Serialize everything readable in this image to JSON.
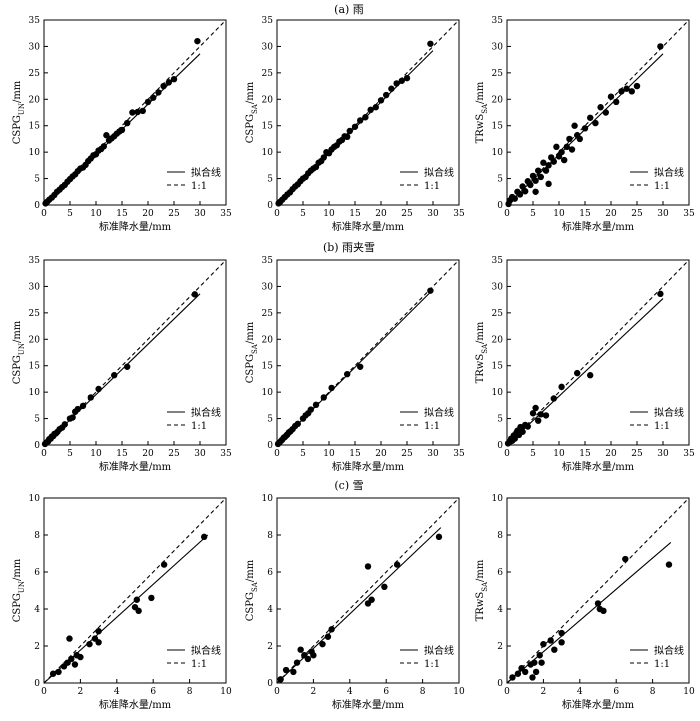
{
  "panel_titles": [
    "(a) 雨",
    "(b) 雨夹雪",
    "(c) 雪"
  ],
  "legend": {
    "fit_label": "拟合线",
    "one_to_one_label": "1:1"
  },
  "chart_data": [
    {
      "type": "scatter",
      "group": "(a) 雨",
      "xlabel": "标准降水量/mm",
      "ylabel": "CSPG_UN/mm",
      "xlim": [
        0,
        35
      ],
      "ylim": [
        0,
        35
      ],
      "ticks": [
        0,
        5,
        10,
        15,
        20,
        25,
        30,
        35
      ],
      "fit": {
        "x": [
          0,
          30
        ],
        "y": [
          0,
          28.6
        ]
      },
      "points": [
        [
          0.3,
          0.3
        ],
        [
          0.6,
          0.6
        ],
        [
          1,
          1
        ],
        [
          1.5,
          1.4
        ],
        [
          2,
          1.9
        ],
        [
          2.5,
          2.5
        ],
        [
          3,
          2.9
        ],
        [
          3.5,
          3.4
        ],
        [
          4,
          3.8
        ],
        [
          4.5,
          4.4
        ],
        [
          5,
          4.9
        ],
        [
          5.5,
          5.4
        ],
        [
          6,
          5.8
        ],
        [
          6.5,
          6.4
        ],
        [
          7,
          6.9
        ],
        [
          7.5,
          7.1
        ],
        [
          8,
          7.6
        ],
        [
          8.5,
          8.3
        ],
        [
          9,
          8.8
        ],
        [
          9.5,
          9.4
        ],
        [
          10,
          9.6
        ],
        [
          10.5,
          10.3
        ],
        [
          11,
          10.6
        ],
        [
          11.5,
          11.1
        ],
        [
          12,
          13.2
        ],
        [
          12.5,
          12.2
        ],
        [
          13,
          12.6
        ],
        [
          13.5,
          13
        ],
        [
          14,
          13.5
        ],
        [
          14.5,
          13.9
        ],
        [
          15,
          14.2
        ],
        [
          16,
          15.5
        ],
        [
          17,
          17.5
        ],
        [
          18,
          17.6
        ],
        [
          19,
          17.8
        ],
        [
          20,
          19.5
        ],
        [
          21,
          20.3
        ],
        [
          22,
          21.3
        ],
        [
          23,
          22.5
        ],
        [
          24,
          23.2
        ],
        [
          25,
          23.8
        ],
        [
          29.5,
          31
        ]
      ]
    },
    {
      "type": "scatter",
      "group": "(a) 雨",
      "xlabel": "标准降水量/mm",
      "ylabel": "CSPG_SA/mm",
      "xlim": [
        0,
        35
      ],
      "ylim": [
        0,
        35
      ],
      "ticks": [
        0,
        5,
        10,
        15,
        20,
        25,
        30,
        35
      ],
      "fit": {
        "x": [
          0,
          30
        ],
        "y": [
          0,
          29.2
        ]
      },
      "points": [
        [
          0.3,
          0.3
        ],
        [
          0.6,
          0.6
        ],
        [
          1,
          1
        ],
        [
          1.5,
          1.5
        ],
        [
          2,
          2
        ],
        [
          2.5,
          2.4
        ],
        [
          3,
          3
        ],
        [
          3.5,
          3.5
        ],
        [
          4,
          3.9
        ],
        [
          4.5,
          4.5
        ],
        [
          5,
          5
        ],
        [
          5.5,
          5.3
        ],
        [
          6,
          6
        ],
        [
          6.5,
          6.5
        ],
        [
          7,
          6.9
        ],
        [
          7.5,
          7.2
        ],
        [
          8,
          8
        ],
        [
          8.5,
          8.3
        ],
        [
          9,
          9
        ],
        [
          9.5,
          10
        ],
        [
          10,
          9.8
        ],
        [
          10.5,
          10.5
        ],
        [
          11,
          11
        ],
        [
          11.5,
          11.3
        ],
        [
          12,
          12
        ],
        [
          12.5,
          12.3
        ],
        [
          13,
          13
        ],
        [
          13.5,
          12.9
        ],
        [
          14,
          14
        ],
        [
          15,
          14.8
        ],
        [
          16,
          16
        ],
        [
          17,
          16.6
        ],
        [
          18,
          18
        ],
        [
          19,
          18.5
        ],
        [
          20,
          19.8
        ],
        [
          21,
          20.8
        ],
        [
          22,
          22
        ],
        [
          23,
          23
        ],
        [
          24,
          23.5
        ],
        [
          25,
          24
        ],
        [
          29.5,
          30.5
        ]
      ]
    },
    {
      "type": "scatter",
      "group": "(a) 雨",
      "xlabel": "标准降水量/mm",
      "ylabel": "TRwS_SA/mm",
      "xlim": [
        0,
        35
      ],
      "ylim": [
        0,
        35
      ],
      "ticks": [
        0,
        5,
        10,
        15,
        20,
        25,
        30,
        35
      ],
      "fit": {
        "x": [
          0,
          30
        ],
        "y": [
          0,
          28.6
        ]
      },
      "points": [
        [
          0.3,
          0.2
        ],
        [
          0.6,
          0.9
        ],
        [
          1,
          1.5
        ],
        [
          1.5,
          1.2
        ],
        [
          2,
          2.5
        ],
        [
          2.5,
          2
        ],
        [
          3,
          3.5
        ],
        [
          3.5,
          2.6
        ],
        [
          4,
          4.5
        ],
        [
          4.5,
          3.8
        ],
        [
          5,
          5.5
        ],
        [
          5.5,
          4.6
        ],
        [
          6,
          6.5
        ],
        [
          6.5,
          5.3
        ],
        [
          7,
          8
        ],
        [
          7.5,
          6.5
        ],
        [
          8,
          7.5
        ],
        [
          8.5,
          9
        ],
        [
          9,
          8.2
        ],
        [
          9.5,
          11
        ],
        [
          10,
          9.2
        ],
        [
          10.5,
          10
        ],
        [
          11,
          8.5
        ],
        [
          11.5,
          11
        ],
        [
          12,
          12.5
        ],
        [
          12.5,
          10.5
        ],
        [
          13,
          15
        ],
        [
          13.5,
          13.2
        ],
        [
          14,
          12.5
        ],
        [
          15,
          14.5
        ],
        [
          16,
          16.5
        ],
        [
          17,
          15.5
        ],
        [
          18,
          18.5
        ],
        [
          19,
          17.5
        ],
        [
          20,
          20.5
        ],
        [
          21,
          19.5
        ],
        [
          22,
          21.5
        ],
        [
          23,
          22
        ],
        [
          24,
          21.5
        ],
        [
          25,
          22.5
        ],
        [
          8,
          4
        ],
        [
          5.5,
          2.5
        ],
        [
          29.5,
          30
        ]
      ]
    },
    {
      "type": "scatter",
      "group": "(b) 雨夹雪",
      "xlabel": "标准降水量/mm",
      "ylabel": "CSPG_UN/mm",
      "xlim": [
        0,
        35
      ],
      "ylim": [
        0,
        35
      ],
      "ticks": [
        0,
        5,
        10,
        15,
        20,
        25,
        30,
        35
      ],
      "fit": {
        "x": [
          0,
          30
        ],
        "y": [
          0,
          28.6
        ]
      },
      "points": [
        [
          0.2,
          0.2
        ],
        [
          0.5,
          0.5
        ],
        [
          0.8,
          0.7
        ],
        [
          1,
          1.1
        ],
        [
          1.3,
          1.2
        ],
        [
          1.5,
          1.6
        ],
        [
          1.8,
          1.7
        ],
        [
          2,
          2.1
        ],
        [
          2.3,
          2.2
        ],
        [
          2.6,
          2.5
        ],
        [
          3,
          3
        ],
        [
          3.5,
          3.3
        ],
        [
          4,
          3.9
        ],
        [
          5,
          5
        ],
        [
          5.5,
          5.2
        ],
        [
          6,
          6.3
        ],
        [
          6.5,
          6.8
        ],
        [
          7.5,
          7.4
        ],
        [
          9,
          9
        ],
        [
          10.5,
          10.6
        ],
        [
          13.5,
          13.2
        ],
        [
          16,
          14.8
        ],
        [
          29,
          28.5
        ]
      ]
    },
    {
      "type": "scatter",
      "group": "(b) 雨夹雪",
      "xlabel": "标准降水量/mm",
      "ylabel": "CSPG_SA/mm",
      "xlim": [
        0,
        35
      ],
      "ylim": [
        0,
        35
      ],
      "ticks": [
        0,
        5,
        10,
        15,
        20,
        25,
        30,
        35
      ],
      "fit": {
        "x": [
          0,
          30
        ],
        "y": [
          0,
          29.4
        ]
      },
      "points": [
        [
          0.2,
          0.2
        ],
        [
          0.5,
          0.5
        ],
        [
          0.8,
          0.8
        ],
        [
          1,
          1
        ],
        [
          1.3,
          1.4
        ],
        [
          1.5,
          1.5
        ],
        [
          1.8,
          1.8
        ],
        [
          2,
          2
        ],
        [
          2.3,
          2.4
        ],
        [
          2.6,
          2.6
        ],
        [
          3,
          3
        ],
        [
          3.5,
          3.6
        ],
        [
          4,
          4
        ],
        [
          5,
          5
        ],
        [
          5.5,
          5.6
        ],
        [
          6,
          6
        ],
        [
          6.5,
          6.7
        ],
        [
          7.5,
          7.6
        ],
        [
          9,
          9
        ],
        [
          10.5,
          10.8
        ],
        [
          13.5,
          13.4
        ],
        [
          16,
          14.8
        ],
        [
          29.5,
          29.2
        ]
      ]
    },
    {
      "type": "scatter",
      "group": "(b) 雨夹雪",
      "xlabel": "标准降水量/mm",
      "ylabel": "TRwS_SA/mm",
      "xlim": [
        0,
        35
      ],
      "ylim": [
        0,
        35
      ],
      "ticks": [
        0,
        5,
        10,
        15,
        20,
        25,
        30,
        35
      ],
      "fit": {
        "x": [
          0,
          30
        ],
        "y": [
          0,
          27.7
        ]
      },
      "points": [
        [
          0.2,
          0.3
        ],
        [
          0.5,
          0.6
        ],
        [
          0.8,
          1.2
        ],
        [
          1,
          0.8
        ],
        [
          1.3,
          1.8
        ],
        [
          1.5,
          1.2
        ],
        [
          1.8,
          2.3
        ],
        [
          2,
          2.7
        ],
        [
          2.3,
          1.9
        ],
        [
          2.6,
          3.4
        ],
        [
          3,
          2.5
        ],
        [
          3.5,
          3.8
        ],
        [
          4,
          3.5
        ],
        [
          5,
          6
        ],
        [
          5.5,
          7
        ],
        [
          6,
          4.6
        ],
        [
          6.5,
          5.8
        ],
        [
          7.5,
          5.6
        ],
        [
          9,
          8.8
        ],
        [
          10.5,
          11
        ],
        [
          13.5,
          13.6
        ],
        [
          16,
          13.2
        ],
        [
          29.5,
          28.6
        ]
      ]
    },
    {
      "type": "scatter",
      "group": "(c) 雪",
      "xlabel": "标准降水量/mm",
      "ylabel": "CSPG_UN/mm",
      "xlim": [
        0,
        10
      ],
      "ylim": [
        0,
        10
      ],
      "ticks": [
        0,
        2,
        4,
        6,
        8,
        10
      ],
      "fit": {
        "x": [
          0,
          9
        ],
        "y": [
          0,
          8
        ]
      },
      "points": [
        [
          0.5,
          0.5
        ],
        [
          0.8,
          0.6
        ],
        [
          1.1,
          0.9
        ],
        [
          1.3,
          1.1
        ],
        [
          1.4,
          2.4
        ],
        [
          1.5,
          1.3
        ],
        [
          1.7,
          1
        ],
        [
          1.8,
          1.5
        ],
        [
          2,
          1.4
        ],
        [
          2.5,
          2.1
        ],
        [
          2.8,
          2.4
        ],
        [
          3,
          2.8
        ],
        [
          3,
          2.2
        ],
        [
          5,
          4.1
        ],
        [
          5.1,
          4.5
        ],
        [
          5.2,
          3.9
        ],
        [
          5.9,
          4.6
        ],
        [
          6.6,
          6.4
        ],
        [
          8.8,
          7.9
        ]
      ]
    },
    {
      "type": "scatter",
      "group": "(c) 雪",
      "xlabel": "标准降水量/mm",
      "ylabel": "CSPG_SA/mm",
      "xlim": [
        0,
        10
      ],
      "ylim": [
        0,
        10
      ],
      "ticks": [
        0,
        2,
        4,
        6,
        8,
        10
      ],
      "fit": {
        "x": [
          0,
          9
        ],
        "y": [
          0,
          8.4
        ]
      },
      "points": [
        [
          0.2,
          0.2
        ],
        [
          0.5,
          0.7
        ],
        [
          0.9,
          0.6
        ],
        [
          1.1,
          1.1
        ],
        [
          1.3,
          1.8
        ],
        [
          1.5,
          1.5
        ],
        [
          1.7,
          1.3
        ],
        [
          1.9,
          1.7
        ],
        [
          2,
          1.5
        ],
        [
          2.5,
          2.1
        ],
        [
          2.8,
          2.5
        ],
        [
          3,
          2.9
        ],
        [
          5,
          4.3
        ],
        [
          5,
          6.3
        ],
        [
          5.2,
          4.5
        ],
        [
          5.9,
          5.2
        ],
        [
          6.6,
          6.4
        ],
        [
          8.9,
          7.9
        ]
      ]
    },
    {
      "type": "scatter",
      "group": "(c) 雪",
      "xlabel": "标准降水量/mm",
      "ylabel": "TRwS_SA/mm",
      "xlim": [
        0,
        10
      ],
      "ylim": [
        0,
        10
      ],
      "ticks": [
        0,
        2,
        4,
        6,
        8,
        10
      ],
      "fit": {
        "x": [
          0,
          9
        ],
        "y": [
          0,
          7.6
        ]
      },
      "points": [
        [
          0.3,
          0.3
        ],
        [
          0.6,
          0.5
        ],
        [
          0.8,
          0.8
        ],
        [
          1,
          0.6
        ],
        [
          1.3,
          1
        ],
        [
          1.4,
          0.3
        ],
        [
          1.5,
          1.1
        ],
        [
          1.6,
          0.6
        ],
        [
          1.8,
          1.5
        ],
        [
          1.9,
          1.1
        ],
        [
          2,
          2.1
        ],
        [
          2.4,
          2.3
        ],
        [
          2.6,
          1.8
        ],
        [
          3,
          2.7
        ],
        [
          3,
          2.2
        ],
        [
          5,
          4.3
        ],
        [
          5.1,
          4
        ],
        [
          5.3,
          3.9
        ],
        [
          6.5,
          6.7
        ],
        [
          8.9,
          6.4
        ]
      ]
    }
  ]
}
